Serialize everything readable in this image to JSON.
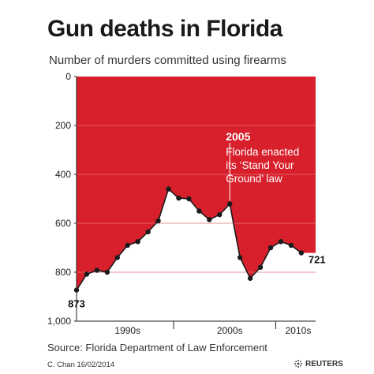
{
  "chart_data": {
    "type": "area",
    "title": "Gun deaths in Florida",
    "subtitle": "Number of murders committed using firearms",
    "x": [
      1990,
      1991,
      1992,
      1993,
      1994,
      1995,
      1996,
      1997,
      1998,
      1999,
      2000,
      2001,
      2002,
      2003,
      2004,
      2005,
      2006,
      2007,
      2008,
      2009,
      2010,
      2011,
      2012,
      2013
    ],
    "values": [
      873,
      808,
      792,
      800,
      740,
      690,
      675,
      635,
      590,
      460,
      497,
      500,
      550,
      585,
      565,
      521,
      740,
      825,
      780,
      700,
      675,
      690,
      721,
      null
    ],
    "ylim": [
      0,
      1000
    ],
    "y_inverted": true,
    "y_ticks": [
      "0",
      "200",
      "400",
      "600",
      "800",
      "1,000"
    ],
    "x_labels": [
      "1990s",
      "2000s",
      "2010s"
    ],
    "grid": true,
    "colors": {
      "fill": "#d7202b",
      "line": "#1a1a1a",
      "grid": "#ffffff"
    },
    "annotations": {
      "start_label": "873",
      "end_label": "721",
      "event_year": "2005",
      "event_lines": [
        "Florida enacted",
        "its ‘Stand Your",
        "Ground’ law"
      ]
    }
  },
  "footer": {
    "source": "Source: Florida Department of Law Enforcement",
    "credit": "C. Chan  16/02/2014",
    "brand": "REUTERS"
  }
}
